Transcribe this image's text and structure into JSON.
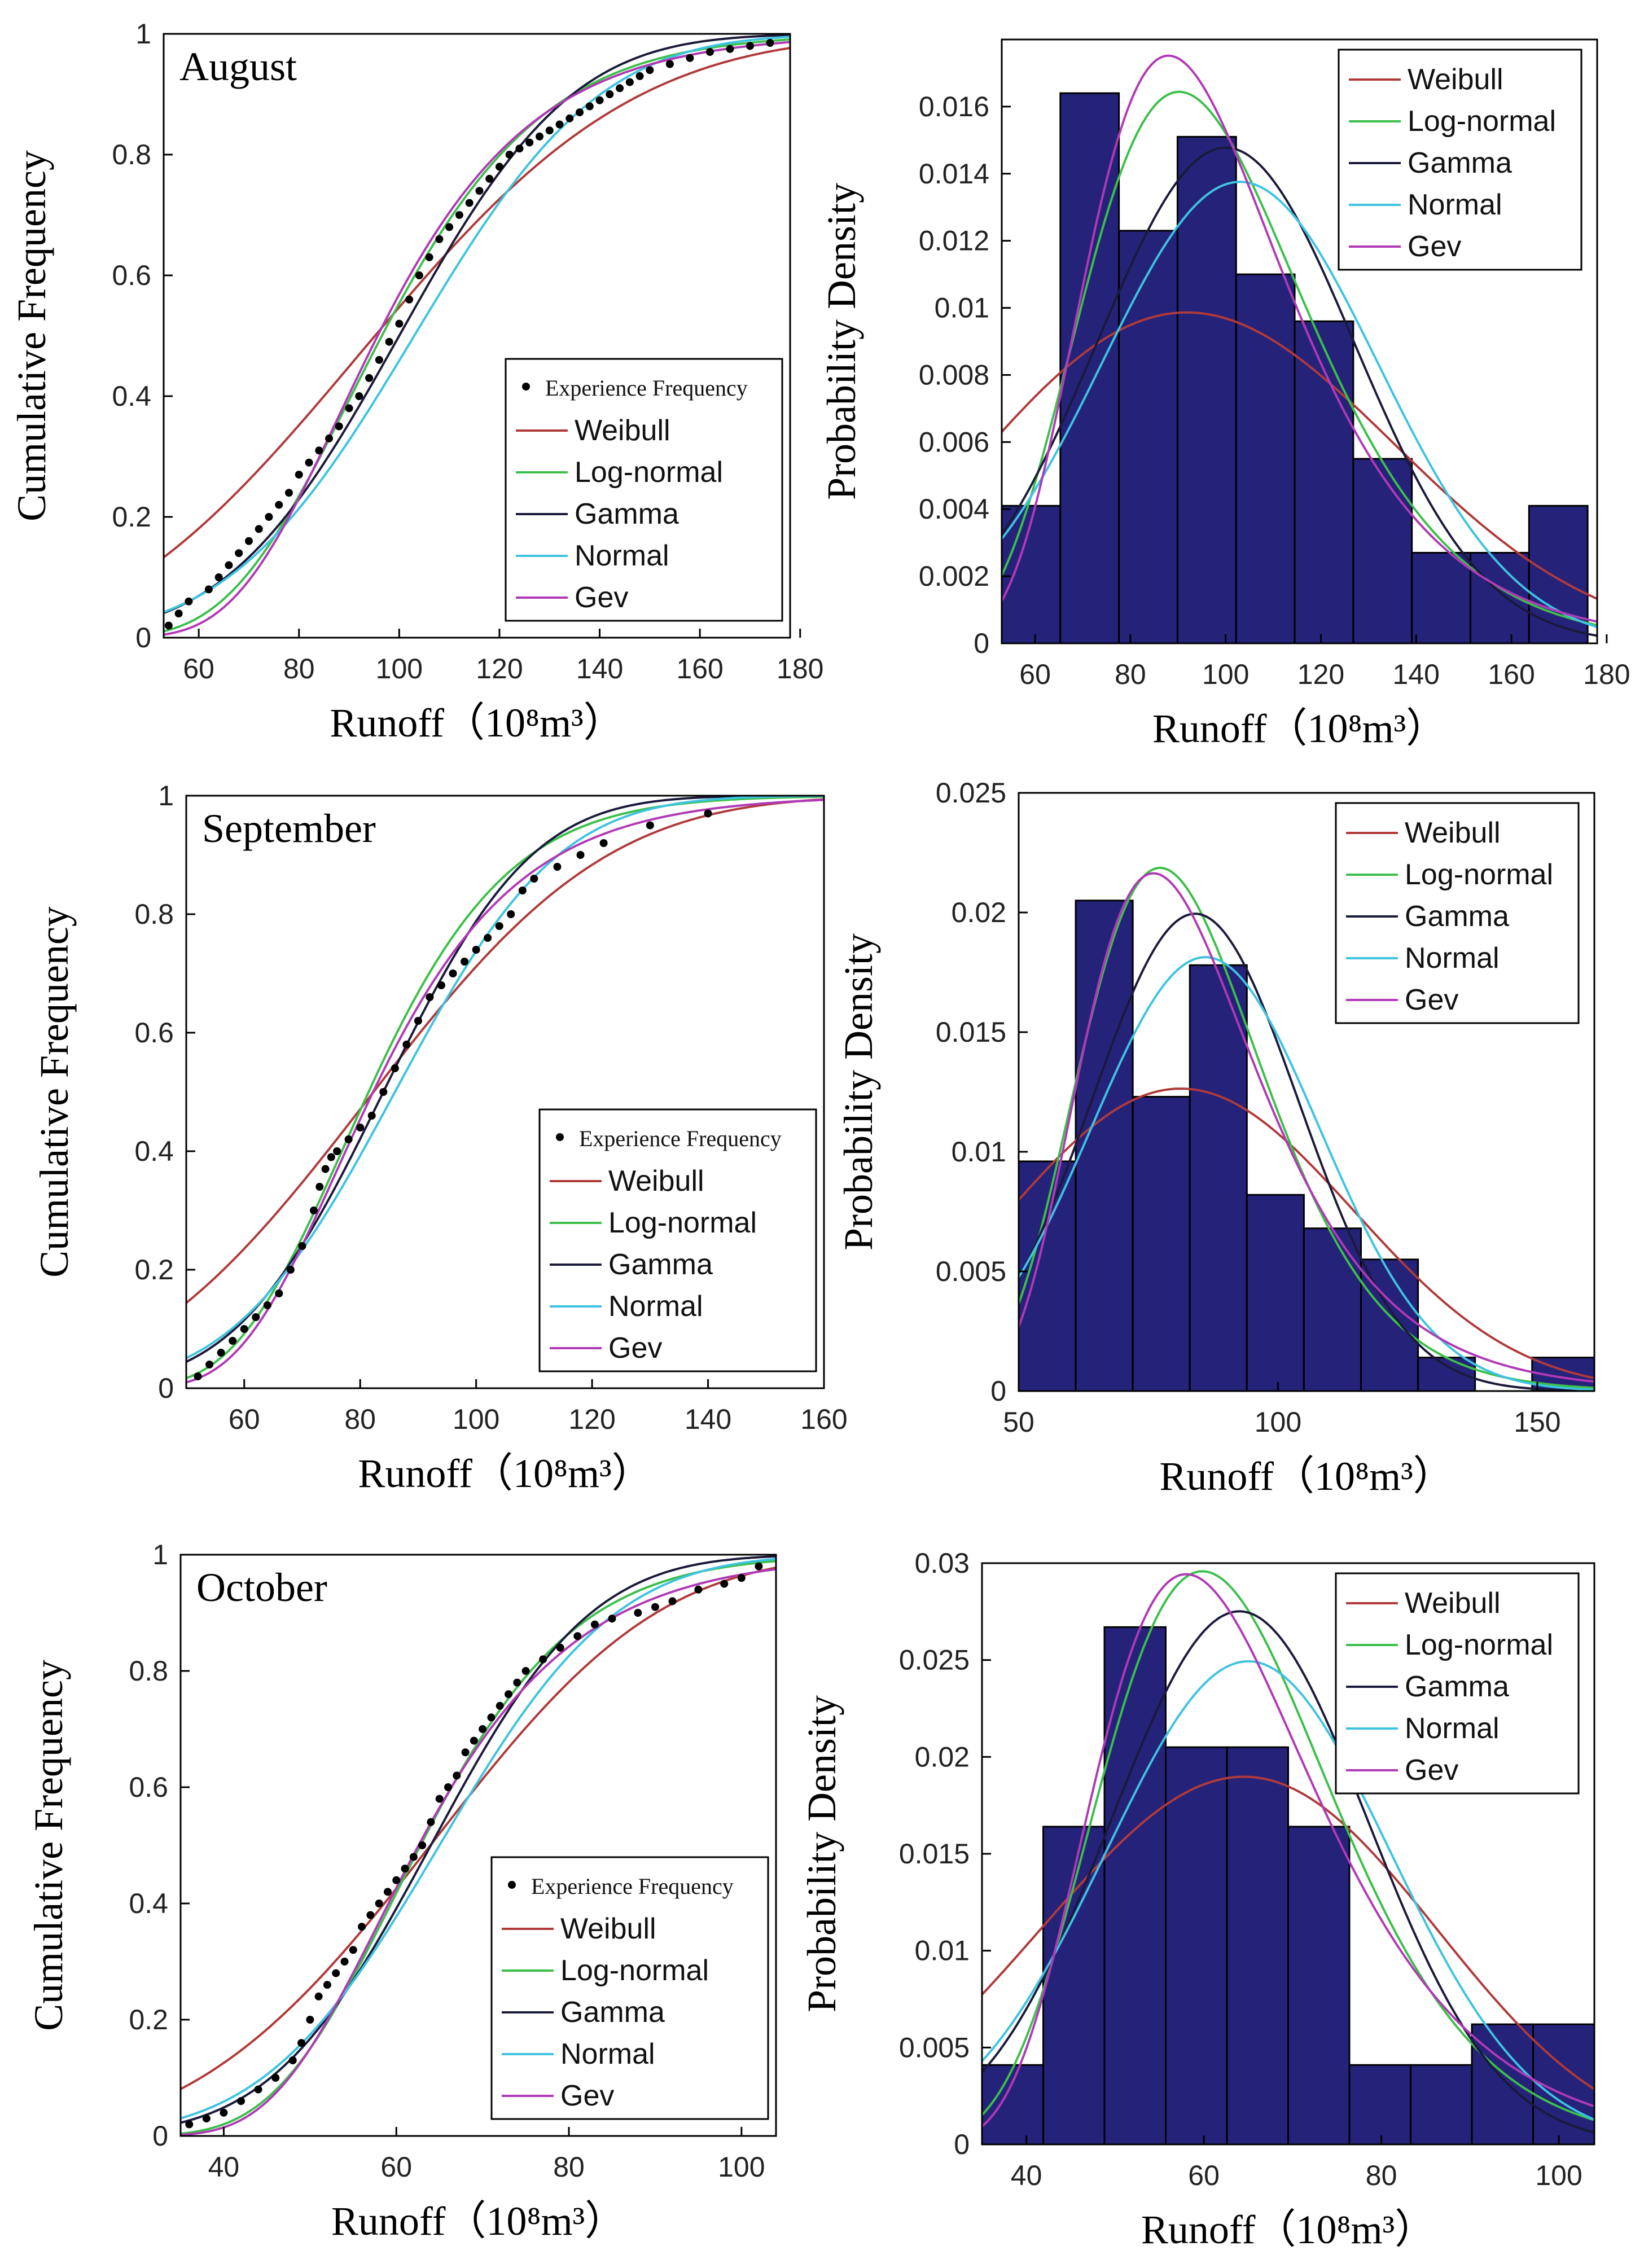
{
  "chart_data": [
    {
      "id": "aug-cdf",
      "type": "line",
      "month": "August",
      "xlabel": "Runoff（10⁸m³）",
      "ylabel": "Cumulative Frequency",
      "xlim": [
        53,
        178
      ],
      "ylim": [
        0,
        1
      ],
      "xticks": [
        60,
        80,
        100,
        120,
        140,
        160,
        180
      ],
      "yticks": [
        0,
        0.2,
        0.4,
        0.6,
        0.8,
        1
      ],
      "legend": [
        "Experience Frequency",
        "Weibull",
        "Log-normal",
        "Gamma",
        "Normal",
        "Gev"
      ],
      "legend_position": "bottom-right",
      "empirical": {
        "x": [
          54,
          56,
          58,
          62,
          64,
          66,
          68,
          70,
          72,
          74,
          76,
          78,
          80,
          82,
          84,
          86,
          88,
          90,
          92,
          94,
          96,
          98,
          100,
          102,
          104,
          106,
          108,
          110,
          112,
          114,
          116,
          118,
          120,
          122,
          124,
          126,
          128,
          130,
          132,
          134,
          136,
          138,
          140,
          142,
          144,
          146,
          148,
          150,
          154,
          158,
          162,
          166,
          170,
          174
        ],
        "y": [
          0.02,
          0.04,
          0.06,
          0.08,
          0.1,
          0.12,
          0.14,
          0.16,
          0.18,
          0.2,
          0.22,
          0.24,
          0.27,
          0.29,
          0.31,
          0.33,
          0.35,
          0.38,
          0.4,
          0.43,
          0.46,
          0.49,
          0.52,
          0.56,
          0.6,
          0.63,
          0.66,
          0.68,
          0.7,
          0.72,
          0.74,
          0.76,
          0.78,
          0.8,
          0.81,
          0.82,
          0.83,
          0.84,
          0.85,
          0.86,
          0.87,
          0.88,
          0.89,
          0.9,
          0.91,
          0.92,
          0.93,
          0.94,
          0.95,
          0.96,
          0.97,
          0.975,
          0.98,
          0.985
        ]
      },
      "series": [
        {
          "name": "Weibull",
          "dist": "weibull",
          "k": 2.7,
          "lambda": 109,
          "loc": 0
        },
        {
          "name": "Log-normal",
          "dist": "lognormal",
          "mu": 4.57,
          "sigma": 0.26
        },
        {
          "name": "Gamma",
          "dist": "normalapprox",
          "mean": 100,
          "sd": 27
        },
        {
          "name": "Normal",
          "dist": "normal",
          "mean": 103,
          "sd": 29
        },
        {
          "name": "Gev",
          "dist": "gev",
          "mu": 88,
          "sigma": 21,
          "xi": 0.0
        }
      ]
    },
    {
      "id": "aug-pdf",
      "type": "bar",
      "xlabel": "Runoff（10⁸m³）",
      "ylabel": "Probability Density",
      "xlim": [
        53,
        178
      ],
      "ylim": [
        0,
        0.018
      ],
      "xticks": [
        60,
        80,
        100,
        120,
        140,
        160,
        180
      ],
      "yticks": [
        0,
        0.002,
        0.004,
        0.006,
        0.008,
        0.01,
        0.012,
        0.014,
        0.016
      ],
      "ytick_labels": [
        "0",
        "0.002",
        "0.004",
        "0.006",
        "0.008",
        "0.01",
        "0.012",
        "0.014",
        "0.016"
      ],
      "legend": [
        "Weibull",
        "Log-normal",
        "Gamma",
        "Normal",
        "Gev"
      ],
      "legend_position": "top-right",
      "bins": {
        "edges": [
          53,
          65.3,
          77.6,
          89.9,
          102.2,
          114.5,
          126.8,
          139.1,
          151.4,
          163.7,
          176
        ],
        "values": [
          0.0041,
          0.0164,
          0.0123,
          0.0151,
          0.011,
          0.0096,
          0.0055,
          0.0027,
          0.0027,
          0.0041
        ]
      },
      "series": [
        {
          "name": "Weibull",
          "dist": "weibull",
          "k": 2.7,
          "lambda": 109,
          "loc": 0
        },
        {
          "name": "Log-normal",
          "dist": "lognormal",
          "mu": 4.57,
          "sigma": 0.26
        },
        {
          "name": "Gamma",
          "dist": "normalapprox",
          "mean": 100,
          "sd": 27
        },
        {
          "name": "Normal",
          "dist": "normal",
          "mean": 103,
          "sd": 29
        },
        {
          "name": "Gev",
          "dist": "gev",
          "mu": 88,
          "sigma": 21,
          "xi": 0.0
        }
      ]
    },
    {
      "id": "sep-cdf",
      "type": "line",
      "month": "September",
      "xlabel": "Runoff（10⁸m³）",
      "ylabel": "Cumulative Frequency",
      "xlim": [
        50,
        160
      ],
      "ylim": [
        0,
        1
      ],
      "xticks": [
        60,
        80,
        100,
        120,
        140,
        160
      ],
      "yticks": [
        0,
        0.2,
        0.4,
        0.6,
        0.8,
        1
      ],
      "legend": [
        "Experience Frequency",
        "Weibull",
        "Log-normal",
        "Gamma",
        "Normal",
        "Gev"
      ],
      "legend_position": "bottom-right",
      "empirical": {
        "x": [
          52,
          54,
          56,
          58,
          60,
          62,
          64,
          66,
          68,
          70,
          72,
          73,
          74,
          75,
          76,
          78,
          80,
          82,
          84,
          86,
          88,
          90,
          92,
          94,
          96,
          98,
          100,
          102,
          104,
          106,
          108,
          110,
          114,
          118,
          122,
          130,
          140
        ],
        "y": [
          0.02,
          0.04,
          0.06,
          0.08,
          0.1,
          0.12,
          0.14,
          0.16,
          0.2,
          0.24,
          0.3,
          0.34,
          0.37,
          0.39,
          0.4,
          0.42,
          0.44,
          0.46,
          0.5,
          0.54,
          0.58,
          0.62,
          0.66,
          0.68,
          0.7,
          0.72,
          0.74,
          0.76,
          0.78,
          0.8,
          0.84,
          0.86,
          0.88,
          0.9,
          0.92,
          0.95,
          0.97
        ]
      },
      "series": [
        {
          "name": "Weibull",
          "dist": "weibull",
          "k": 3.0,
          "lambda": 93,
          "loc": 0
        },
        {
          "name": "Log-normal",
          "dist": "lognormal",
          "mu": 4.4,
          "sigma": 0.23
        },
        {
          "name": "Gamma",
          "dist": "normalapprox",
          "mean": 84,
          "sd": 20
        },
        {
          "name": "Normal",
          "dist": "normal",
          "mean": 86,
          "sd": 22
        },
        {
          "name": "Gev",
          "dist": "gev",
          "mu": 76,
          "sigma": 17,
          "xi": 0.0
        }
      ]
    },
    {
      "id": "sep-pdf",
      "type": "bar",
      "xlabel": "Runoff（10⁸m³）",
      "ylabel": "Probability Density",
      "xlim": [
        50,
        161
      ],
      "ylim": [
        0,
        0.025
      ],
      "xticks": [
        50,
        100,
        150
      ],
      "yticks": [
        0,
        0.005,
        0.01,
        0.015,
        0.02,
        0.025
      ],
      "ytick_labels": [
        "0",
        "0.005",
        "0.01",
        "0.015",
        "0.02",
        "0.025"
      ],
      "legend": [
        "Weibull",
        "Log-normal",
        "Gamma",
        "Normal",
        "Gev"
      ],
      "legend_position": "top-right",
      "bins": {
        "edges": [
          50,
          61,
          72,
          83,
          94,
          105,
          116,
          127,
          138,
          149,
          161
        ],
        "values": [
          0.0096,
          0.0205,
          0.0123,
          0.0178,
          0.0082,
          0.0068,
          0.0055,
          0.0014,
          0.0,
          0.0014
        ]
      },
      "series": [
        {
          "name": "Weibull",
          "dist": "weibull",
          "k": 3.0,
          "lambda": 93,
          "loc": 0
        },
        {
          "name": "Log-normal",
          "dist": "lognormal",
          "mu": 4.4,
          "sigma": 0.23
        },
        {
          "name": "Gamma",
          "dist": "normalapprox",
          "mean": 84,
          "sd": 20
        },
        {
          "name": "Normal",
          "dist": "normal",
          "mean": 86,
          "sd": 22
        },
        {
          "name": "Gev",
          "dist": "gev",
          "mu": 76,
          "sigma": 17,
          "xi": 0.0
        }
      ]
    },
    {
      "id": "oct-cdf",
      "type": "line",
      "month": "October",
      "xlabel": "Runoff（10⁸m³）",
      "ylabel": "Cumulative Frequency",
      "xlim": [
        35,
        104
      ],
      "ylim": [
        0,
        1
      ],
      "xticks": [
        40,
        60,
        80,
        100
      ],
      "yticks": [
        0,
        0.2,
        0.4,
        0.6,
        0.8,
        1
      ],
      "legend": [
        "Experience Frequency",
        "Weibull",
        "Log-normal",
        "Gamma",
        "Normal",
        "Gev"
      ],
      "legend_position": "bottom-right",
      "empirical": {
        "x": [
          36,
          38,
          40,
          42,
          44,
          46,
          48,
          49,
          50,
          51,
          52,
          53,
          54,
          55,
          56,
          57,
          58,
          59,
          60,
          61,
          62,
          63,
          64,
          65,
          66,
          67,
          68,
          69,
          70,
          71,
          72,
          73,
          74,
          75,
          77,
          79,
          81,
          83,
          85,
          88,
          90,
          92,
          95,
          98,
          100,
          102
        ],
        "y": [
          0.02,
          0.03,
          0.04,
          0.06,
          0.08,
          0.1,
          0.13,
          0.16,
          0.2,
          0.24,
          0.26,
          0.28,
          0.3,
          0.32,
          0.36,
          0.38,
          0.4,
          0.42,
          0.44,
          0.46,
          0.48,
          0.5,
          0.54,
          0.58,
          0.6,
          0.62,
          0.66,
          0.68,
          0.7,
          0.72,
          0.74,
          0.76,
          0.78,
          0.8,
          0.82,
          0.84,
          0.86,
          0.88,
          0.89,
          0.9,
          0.91,
          0.92,
          0.94,
          0.95,
          0.96,
          0.98
        ]
      },
      "series": [
        {
          "name": "Weibull",
          "dist": "weibull",
          "k": 3.5,
          "lambda": 71,
          "loc": 0
        },
        {
          "name": "Log-normal",
          "dist": "lognormal",
          "mu": 4.14,
          "sigma": 0.22
        },
        {
          "name": "Gamma",
          "dist": "normalapprox",
          "mean": 64,
          "sd": 14.5
        },
        {
          "name": "Normal",
          "dist": "normal",
          "mean": 65,
          "sd": 16
        },
        {
          "name": "Gev",
          "dist": "gev",
          "mu": 58,
          "sigma": 12.5,
          "xi": 0.0
        }
      ]
    },
    {
      "id": "oct-pdf",
      "type": "bar",
      "xlabel": "Runoff（10⁸m³）",
      "ylabel": "Probability Density",
      "xlim": [
        35,
        104
      ],
      "ylim": [
        0,
        0.03
      ],
      "xticks": [
        40,
        60,
        80,
        100
      ],
      "yticks": [
        0,
        0.005,
        0.01,
        0.015,
        0.02,
        0.025,
        0.03
      ],
      "ytick_labels": [
        "0",
        "0.005",
        "0.01",
        "0.015",
        "0.02",
        "0.025",
        "0.03"
      ],
      "legend": [
        "Weibull",
        "Log-normal",
        "Gamma",
        "Normal",
        "Gev"
      ],
      "legend_position": "top-right",
      "bins": {
        "edges": [
          35,
          41.9,
          48.8,
          55.7,
          62.6,
          69.5,
          76.4,
          83.3,
          90.2,
          97.1,
          104
        ],
        "values": [
          0.0041,
          0.0164,
          0.0267,
          0.0205,
          0.0205,
          0.0164,
          0.0041,
          0.0041,
          0.0062,
          0.0062
        ]
      },
      "series": [
        {
          "name": "Weibull",
          "dist": "weibull",
          "k": 3.5,
          "lambda": 71,
          "loc": 0
        },
        {
          "name": "Log-normal",
          "dist": "lognormal",
          "mu": 4.14,
          "sigma": 0.22
        },
        {
          "name": "Gamma",
          "dist": "normalapprox",
          "mean": 64,
          "sd": 14.5
        },
        {
          "name": "Normal",
          "dist": "normal",
          "mean": 65,
          "sd": 16
        },
        {
          "name": "Gev",
          "dist": "gev",
          "mu": 58,
          "sigma": 12.5,
          "xi": 0.0
        }
      ]
    }
  ],
  "colors": {
    "Weibull": "#b03a3a",
    "Log-normal": "#3cbf4a",
    "Gamma": "#1a1a3a",
    "Normal": "#3ec3e0",
    "Gev": "#b03ab5",
    "bar": "#25227a",
    "dots": "#000000"
  }
}
